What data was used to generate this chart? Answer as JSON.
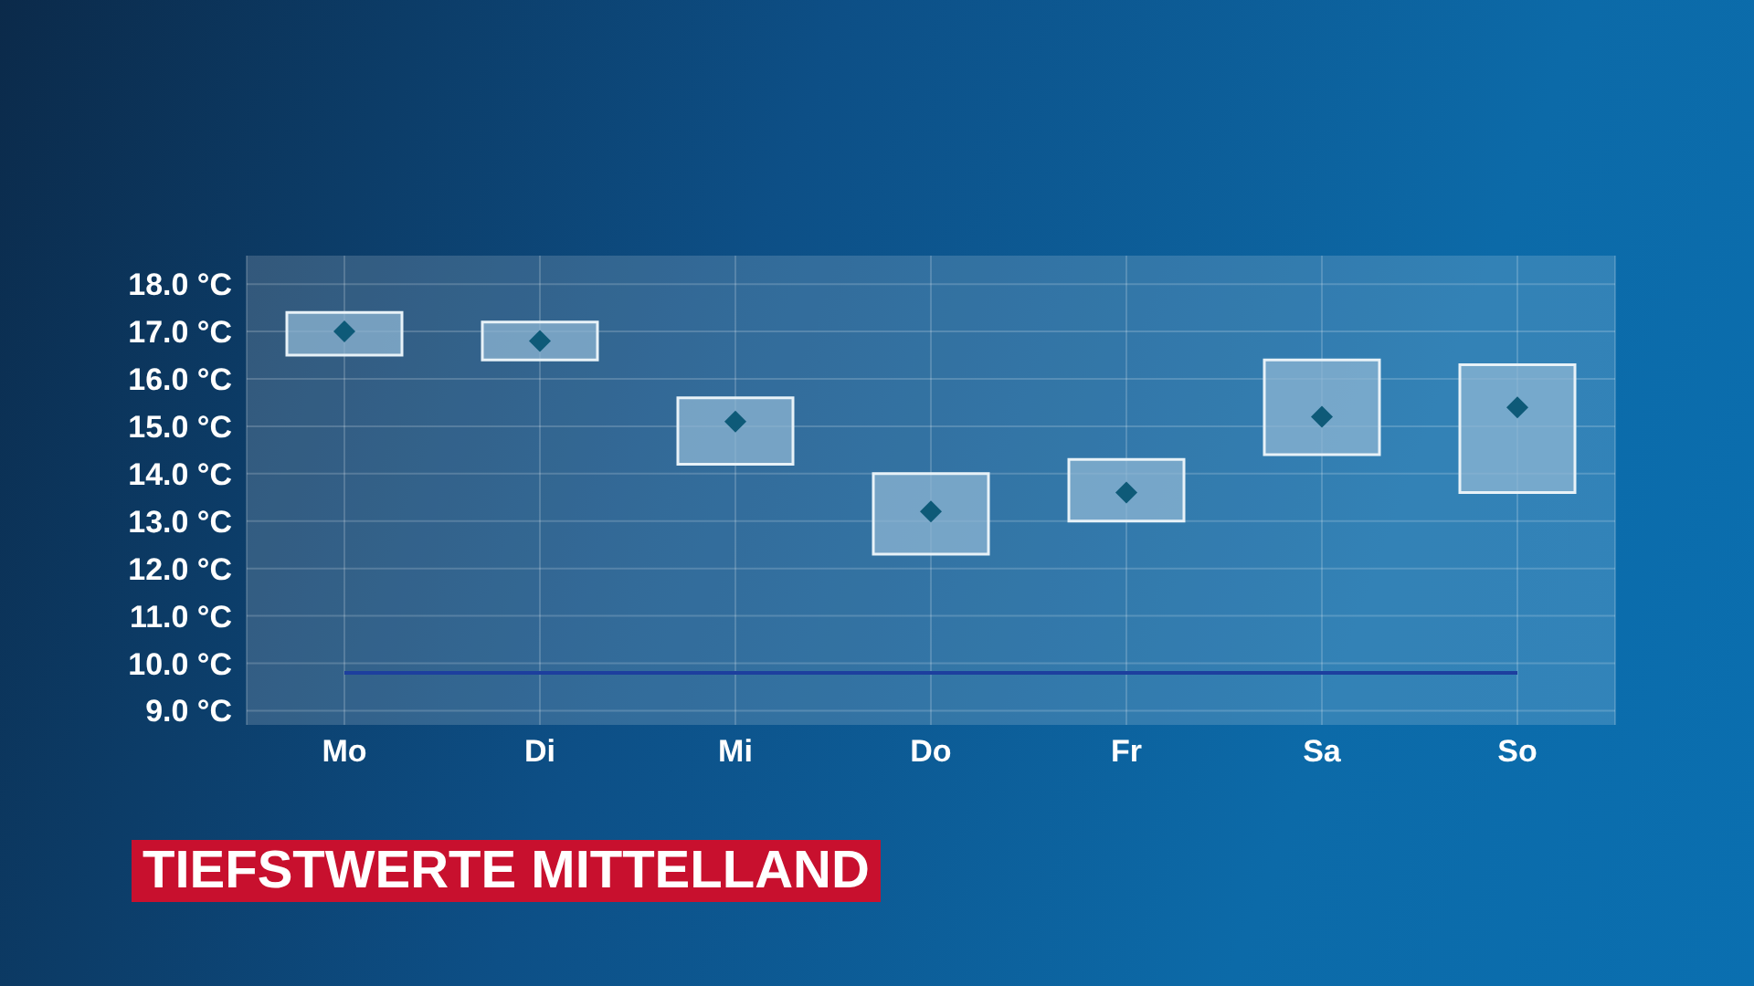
{
  "chart_data": {
    "type": "bar",
    "title": "TIEFSTWERTE MITTELLAND",
    "categories": [
      "Mo",
      "Di",
      "Mi",
      "Do",
      "Fr",
      "Sa",
      "So"
    ],
    "series": [
      {
        "type": "bar",
        "color": "#8db6d3",
        "base": [
          16.5,
          16.4,
          14.2,
          12.3,
          13.0,
          14.4,
          13.6
        ],
        "values": [
          0.9,
          0.8,
          1.4,
          1.7,
          1.3,
          2.0,
          2.7
        ]
      },
      {
        "type": "scatter",
        "marker": "diamond",
        "color": "#0e5a78",
        "values": [
          17.0,
          16.8,
          15.1,
          13.2,
          13.6,
          15.2,
          15.4
        ]
      }
    ],
    "ylim": [
      8.7,
      18.6
    ],
    "yticks": [
      {
        "value": 9,
        "label": "9.0 °C"
      },
      {
        "value": 10,
        "label": "10.0 °C"
      },
      {
        "value": 11,
        "label": "11.0 °C"
      },
      {
        "value": 12,
        "label": "12.0 °C"
      },
      {
        "value": 13,
        "label": "13.0 °C"
      },
      {
        "value": 14,
        "label": "14.0 °C"
      },
      {
        "value": 15,
        "label": "15.0 °C"
      },
      {
        "value": 16,
        "label": "16.0 °C"
      },
      {
        "value": 17,
        "label": "17.0 °C"
      },
      {
        "value": 18,
        "label": "18.0 °C"
      }
    ],
    "ref_lines": [
      {
        "axis": "y",
        "value": 9.8,
        "color": "#1d3f9e"
      }
    ],
    "grid": true
  }
}
